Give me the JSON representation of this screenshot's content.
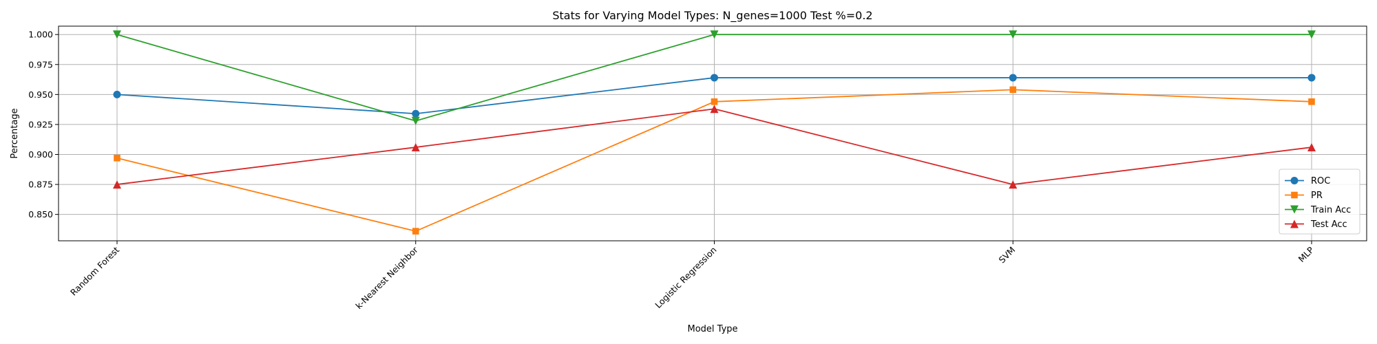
{
  "chart_data": {
    "type": "line",
    "title": "Stats for Varying Model Types: N_genes=1000 Test %=0.2",
    "xlabel": "Model Type",
    "ylabel": "Percentage",
    "categories": [
      "Random Forest",
      "k-Nearest Neighbor",
      "Logistic Regression",
      "SVM",
      "MLP"
    ],
    "ylim": [
      0.828,
      1.007
    ],
    "yticks": [
      0.85,
      0.875,
      0.9,
      0.925,
      0.95,
      0.975,
      1.0
    ],
    "ytick_labels": [
      "0.850",
      "0.875",
      "0.900",
      "0.925",
      "0.950",
      "0.975",
      "1.000"
    ],
    "grid": true,
    "legend_position": "bottom-right",
    "series": [
      {
        "name": "ROC",
        "color": "#1f77b4",
        "marker": "circle",
        "values": [
          0.95,
          0.934,
          0.964,
          0.964,
          0.964
        ]
      },
      {
        "name": "PR",
        "color": "#ff7f0e",
        "marker": "square",
        "values": [
          0.897,
          0.836,
          0.944,
          0.954,
          0.944
        ]
      },
      {
        "name": "Train Acc",
        "color": "#2ca02c",
        "marker": "triangle-down",
        "values": [
          1.0,
          0.928,
          1.0,
          1.0,
          1.0
        ]
      },
      {
        "name": "Test Acc",
        "color": "#d62728",
        "marker": "triangle-up",
        "values": [
          0.875,
          0.906,
          0.938,
          0.875,
          0.906
        ]
      }
    ]
  }
}
